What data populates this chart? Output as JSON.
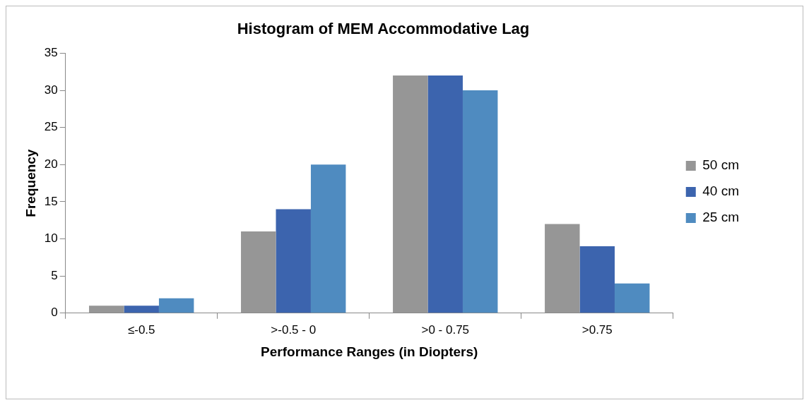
{
  "chart_data": {
    "type": "bar",
    "title": "Histogram of MEM Accommodative Lag",
    "xlabel": "Performance Ranges (in Diopters)",
    "ylabel": "Frequency",
    "categories": [
      "≤-0.5",
      ">-0.5 - 0",
      ">0 - 0.75",
      ">0.75"
    ],
    "series": [
      {
        "name": "50 cm",
        "color": "#969696",
        "values": [
          1,
          11,
          32,
          12
        ]
      },
      {
        "name": "40 cm",
        "color": "#3c64ae",
        "values": [
          1,
          14,
          32,
          9
        ]
      },
      {
        "name": "25 cm",
        "color": "#4f8bc0",
        "values": [
          2,
          20,
          30,
          4
        ]
      }
    ],
    "ylim": [
      0,
      35
    ],
    "yticks": [
      0,
      5,
      10,
      15,
      20,
      25,
      30,
      35
    ],
    "grid": false,
    "legend": "right"
  }
}
